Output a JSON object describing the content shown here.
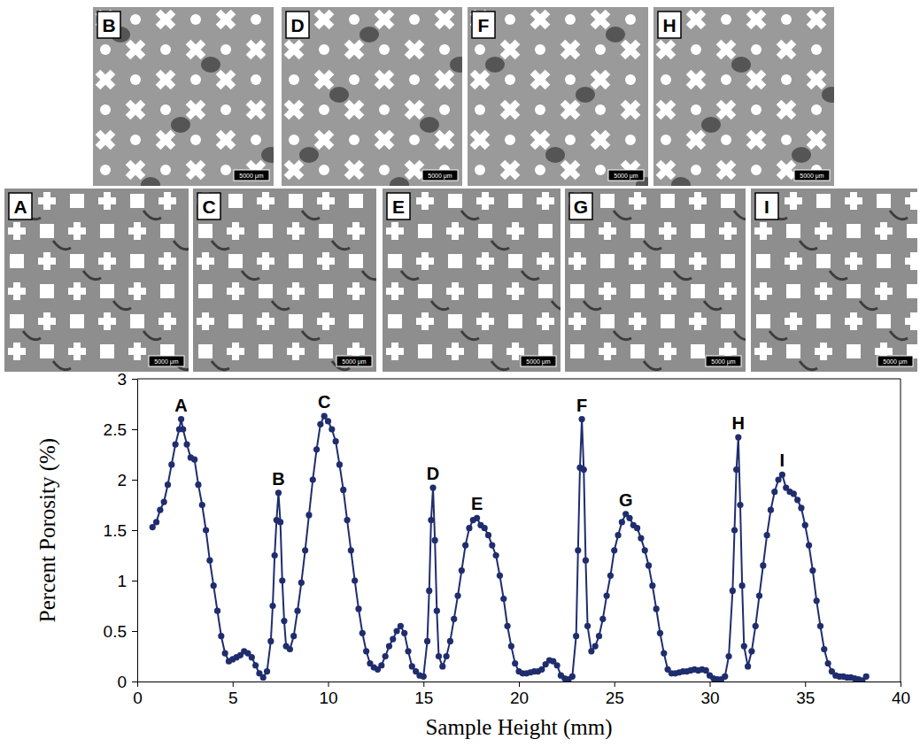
{
  "image_rows": [
    [
      {
        "label": "B",
        "scale_bar": "5000 μm"
      },
      {
        "label": "D",
        "scale_bar": "5000 μm"
      },
      {
        "label": "F",
        "scale_bar": "5000 μm"
      },
      {
        "label": "H",
        "scale_bar": "5000 μm"
      }
    ],
    [
      {
        "label": "A",
        "scale_bar": "5000 μm"
      },
      {
        "label": "C",
        "scale_bar": "5000 μm"
      },
      {
        "label": "E",
        "scale_bar": "5000 μm"
      },
      {
        "label": "G",
        "scale_bar": "5000 μm"
      },
      {
        "label": "I",
        "scale_bar": "5000 μm"
      }
    ]
  ],
  "chart_data": {
    "type": "line",
    "xlabel": "Sample Height (mm)",
    "ylabel": "Percent Porosity (%)",
    "x": [
      0.8,
      1.0,
      1.2,
      1.4,
      1.6,
      1.8,
      2.0,
      2.2,
      2.3,
      2.4,
      2.6,
      2.8,
      3.0,
      3.2,
      3.4,
      3.6,
      3.8,
      4.0,
      4.2,
      4.4,
      4.6,
      4.8,
      5.0,
      5.2,
      5.4,
      5.6,
      5.8,
      6.0,
      6.2,
      6.4,
      6.6,
      6.8,
      7.0,
      7.1,
      7.2,
      7.3,
      7.4,
      7.5,
      7.6,
      7.7,
      7.8,
      8.0,
      8.2,
      8.4,
      8.6,
      8.8,
      9.0,
      9.2,
      9.4,
      9.6,
      9.8,
      10.0,
      10.2,
      10.4,
      10.6,
      10.8,
      11.0,
      11.2,
      11.4,
      11.6,
      11.8,
      12.0,
      12.2,
      12.4,
      12.6,
      12.8,
      13.0,
      13.2,
      13.4,
      13.6,
      13.8,
      14.0,
      14.2,
      14.4,
      14.6,
      14.8,
      15.0,
      15.2,
      15.3,
      15.4,
      15.5,
      15.6,
      15.7,
      15.8,
      16.0,
      16.2,
      16.4,
      16.6,
      16.8,
      17.0,
      17.2,
      17.4,
      17.6,
      17.8,
      18.0,
      18.2,
      18.4,
      18.6,
      18.8,
      19.0,
      19.2,
      19.4,
      19.6,
      19.8,
      20.0,
      20.2,
      20.4,
      20.6,
      20.8,
      21.0,
      21.2,
      21.4,
      21.6,
      21.8,
      22.0,
      22.2,
      22.4,
      22.6,
      22.8,
      23.0,
      23.1,
      23.2,
      23.3,
      23.4,
      23.5,
      23.6,
      23.8,
      24.0,
      24.2,
      24.4,
      24.6,
      24.8,
      25.0,
      25.2,
      25.4,
      25.6,
      25.8,
      26.0,
      26.2,
      26.4,
      26.6,
      26.8,
      27.0,
      27.2,
      27.4,
      27.6,
      27.8,
      28.0,
      28.2,
      28.4,
      28.6,
      28.8,
      29.0,
      29.2,
      29.4,
      29.6,
      29.8,
      30.0,
      30.2,
      30.4,
      30.6,
      30.8,
      31.0,
      31.2,
      31.3,
      31.4,
      31.5,
      31.6,
      31.7,
      31.8,
      32.0,
      32.2,
      32.4,
      32.6,
      32.8,
      33.0,
      33.2,
      33.4,
      33.6,
      33.8,
      34.0,
      34.2,
      34.4,
      34.6,
      34.8,
      35.0,
      35.2,
      35.4,
      35.6,
      35.8,
      36.0,
      36.2,
      36.4,
      36.6,
      36.8,
      37.0,
      37.2,
      37.4,
      37.6,
      37.8,
      38.0,
      38.2
    ],
    "values": [
      1.53,
      1.58,
      1.7,
      1.78,
      1.95,
      2.15,
      2.35,
      2.5,
      2.6,
      2.5,
      2.35,
      2.22,
      2.2,
      1.95,
      1.75,
      1.5,
      1.2,
      0.95,
      0.7,
      0.45,
      0.28,
      0.2,
      0.22,
      0.24,
      0.26,
      0.3,
      0.28,
      0.24,
      0.16,
      0.08,
      0.04,
      0.1,
      0.4,
      0.75,
      1.25,
      1.6,
      1.87,
      1.58,
      1.0,
      0.6,
      0.35,
      0.32,
      0.45,
      0.7,
      0.98,
      1.3,
      1.65,
      2.0,
      2.3,
      2.55,
      2.63,
      2.58,
      2.5,
      2.38,
      2.15,
      1.9,
      1.6,
      1.3,
      1.0,
      0.72,
      0.48,
      0.3,
      0.18,
      0.14,
      0.12,
      0.16,
      0.25,
      0.35,
      0.42,
      0.5,
      0.55,
      0.48,
      0.3,
      0.15,
      0.1,
      0.06,
      0.05,
      0.4,
      0.9,
      1.6,
      1.92,
      1.4,
      0.7,
      0.25,
      0.15,
      0.25,
      0.4,
      0.62,
      0.85,
      1.1,
      1.35,
      1.52,
      1.6,
      1.62,
      1.55,
      1.52,
      1.45,
      1.35,
      1.25,
      1.05,
      0.82,
      0.55,
      0.35,
      0.18,
      0.1,
      0.08,
      0.08,
      0.09,
      0.1,
      0.1,
      0.12,
      0.17,
      0.21,
      0.2,
      0.16,
      0.06,
      0.03,
      0.02,
      0.05,
      0.45,
      1.3,
      2.12,
      2.6,
      2.1,
      1.2,
      0.55,
      0.3,
      0.35,
      0.45,
      0.62,
      0.85,
      1.05,
      1.3,
      1.45,
      1.58,
      1.66,
      1.62,
      1.55,
      1.52,
      1.42,
      1.3,
      1.15,
      0.95,
      0.72,
      0.48,
      0.28,
      0.12,
      0.08,
      0.08,
      0.09,
      0.1,
      0.1,
      0.11,
      0.12,
      0.11,
      0.12,
      0.11,
      0.06,
      0.03,
      0.02,
      0.02,
      0.05,
      0.25,
      0.9,
      1.5,
      2.1,
      2.42,
      1.75,
      0.95,
      0.35,
      0.15,
      0.3,
      0.55,
      0.85,
      1.15,
      1.45,
      1.7,
      1.88,
      2.0,
      2.05,
      1.92,
      1.88,
      1.86,
      1.8,
      1.72,
      1.55,
      1.35,
      1.1,
      0.8,
      0.55,
      0.32,
      0.18,
      0.1,
      0.06,
      0.05,
      0.05,
      0.04,
      0.04,
      0.03,
      0.02,
      0.01,
      0.05
    ],
    "color": "#1f2d6e",
    "marker": "circle",
    "line_style": "solid",
    "grid": false,
    "xlim": [
      0,
      40
    ],
    "ylim": [
      0,
      3
    ],
    "xticks": [
      0,
      5,
      10,
      15,
      20,
      25,
      30,
      35,
      40
    ],
    "yticks": [
      0,
      0.5,
      1,
      1.5,
      2,
      2.5,
      3
    ],
    "annotations": [
      {
        "text": "A",
        "x": 2.3,
        "y": 2.6
      },
      {
        "text": "B",
        "x": 7.4,
        "y": 1.87
      },
      {
        "text": "C",
        "x": 9.8,
        "y": 2.63
      },
      {
        "text": "D",
        "x": 15.5,
        "y": 1.92
      },
      {
        "text": "E",
        "x": 17.8,
        "y": 1.62
      },
      {
        "text": "F",
        "x": 23.3,
        "y": 2.6
      },
      {
        "text": "G",
        "x": 25.6,
        "y": 1.66
      },
      {
        "text": "H",
        "x": 31.5,
        "y": 2.42
      },
      {
        "text": "I",
        "x": 33.8,
        "y": 2.05
      }
    ]
  }
}
